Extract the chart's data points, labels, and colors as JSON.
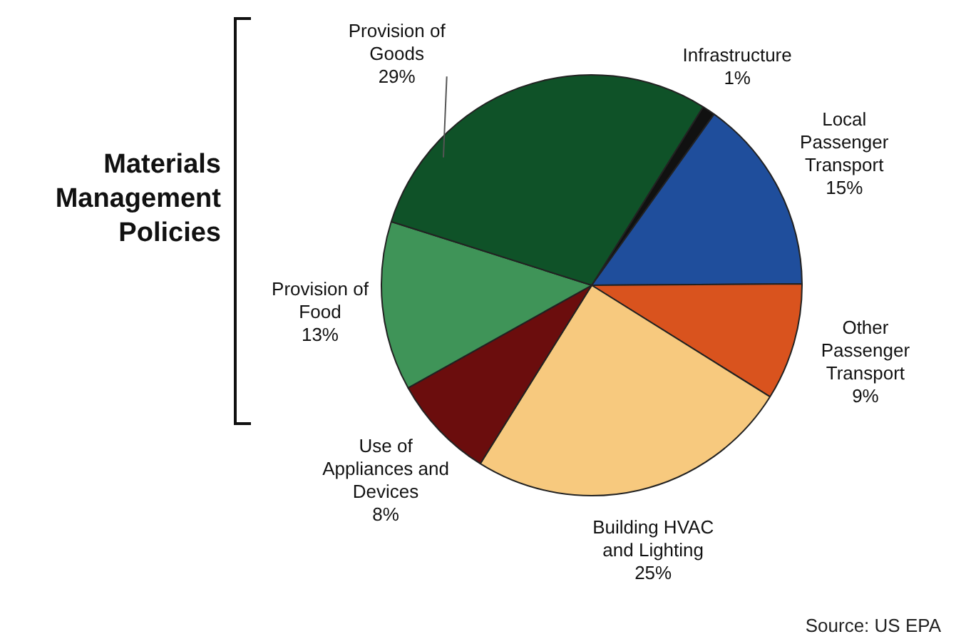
{
  "chart_data": {
    "type": "pie",
    "categories": [
      "Infrastructure",
      "Local Passenger Transport",
      "Other Passenger Transport",
      "Building HVAC and Lighting",
      "Use of Appliances and Devices",
      "Provision of Food",
      "Provision of Goods"
    ],
    "values": [
      1,
      15,
      9,
      25,
      8,
      13,
      29
    ],
    "value_labels": [
      "1%",
      "15%",
      "9%",
      "25%",
      "8%",
      "13%",
      "29%"
    ],
    "colors": [
      "#111111",
      "#1f4e9c",
      "#d9531e",
      "#f7c97e",
      "#6b0d0d",
      "#3f9458",
      "#0f5228"
    ],
    "annotations": [
      "Materials Management Policies",
      "Source: US EPA"
    ],
    "legend": false
  }
}
